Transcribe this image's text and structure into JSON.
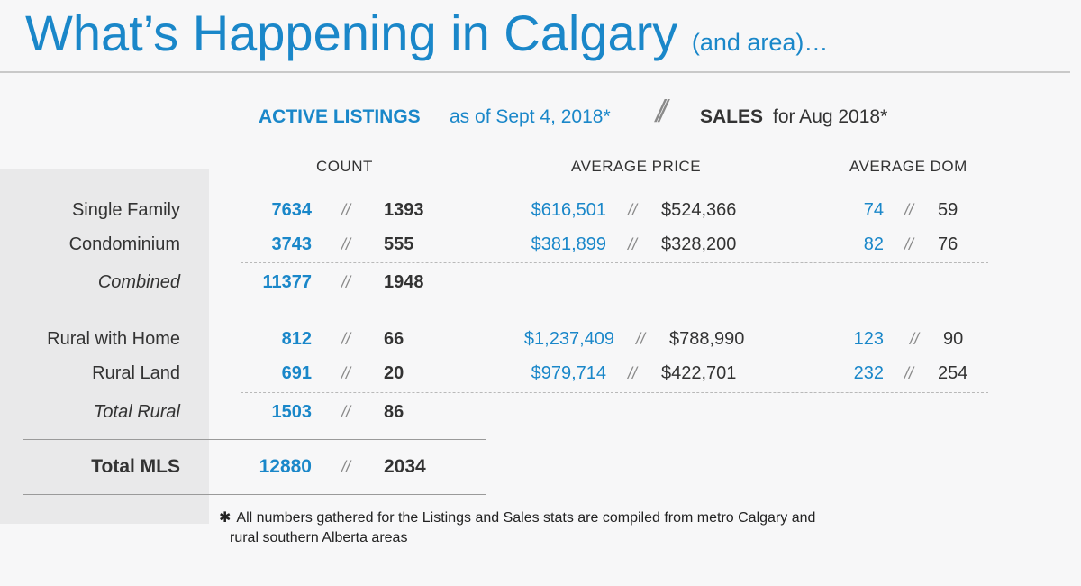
{
  "title": {
    "main": "What’s Happening in Calgary",
    "sub": "(and area)…"
  },
  "header": {
    "active_bold": "ACTIVE LISTINGS",
    "active_rest": "as of Sept 4, 2018*",
    "divider": "//",
    "sales_bold": "SALES",
    "sales_rest": "for Aug 2018*"
  },
  "columns": {
    "count": "COUNT",
    "avg_price": "AVERAGE PRICE",
    "avg_dom": "AVERAGE DOM"
  },
  "separator": "//",
  "rows": [
    {
      "label": "Single Family",
      "count_active": "7634",
      "count_sales": "1393",
      "price_active": "$616,501",
      "price_sales": "$524,366",
      "dom_active": "74",
      "dom_sales": "59"
    },
    {
      "label": "Condominium",
      "count_active": "3743",
      "count_sales": "555",
      "price_active": "$381,899",
      "price_sales": "$328,200",
      "dom_active": "82",
      "dom_sales": "76"
    },
    {
      "label": "Combined",
      "count_active": "11377",
      "count_sales": "1948"
    },
    {
      "label": "Rural with Home",
      "count_active": "812",
      "count_sales": "66",
      "price_active": "$1,237,409",
      "price_sales": "$788,990",
      "dom_active": "123",
      "dom_sales": "90"
    },
    {
      "label": "Rural Land",
      "count_active": "691",
      "count_sales": "20",
      "price_active": "$979,714",
      "price_sales": "$422,701",
      "dom_active": "232",
      "dom_sales": "254"
    },
    {
      "label": "Total Rural",
      "count_active": "1503",
      "count_sales": "86"
    },
    {
      "label": "Total MLS",
      "count_active": "12880",
      "count_sales": "2034"
    }
  ],
  "footnote": {
    "star": "✱",
    "line1": "All numbers gathered for the Listings and Sales stats are compiled from metro Calgary and",
    "line2": "rural southern Alberta areas"
  },
  "colors": {
    "accent": "#1a87c9",
    "text": "#333333",
    "panel": "#e9e9ea",
    "background": "#f7f7f8"
  }
}
